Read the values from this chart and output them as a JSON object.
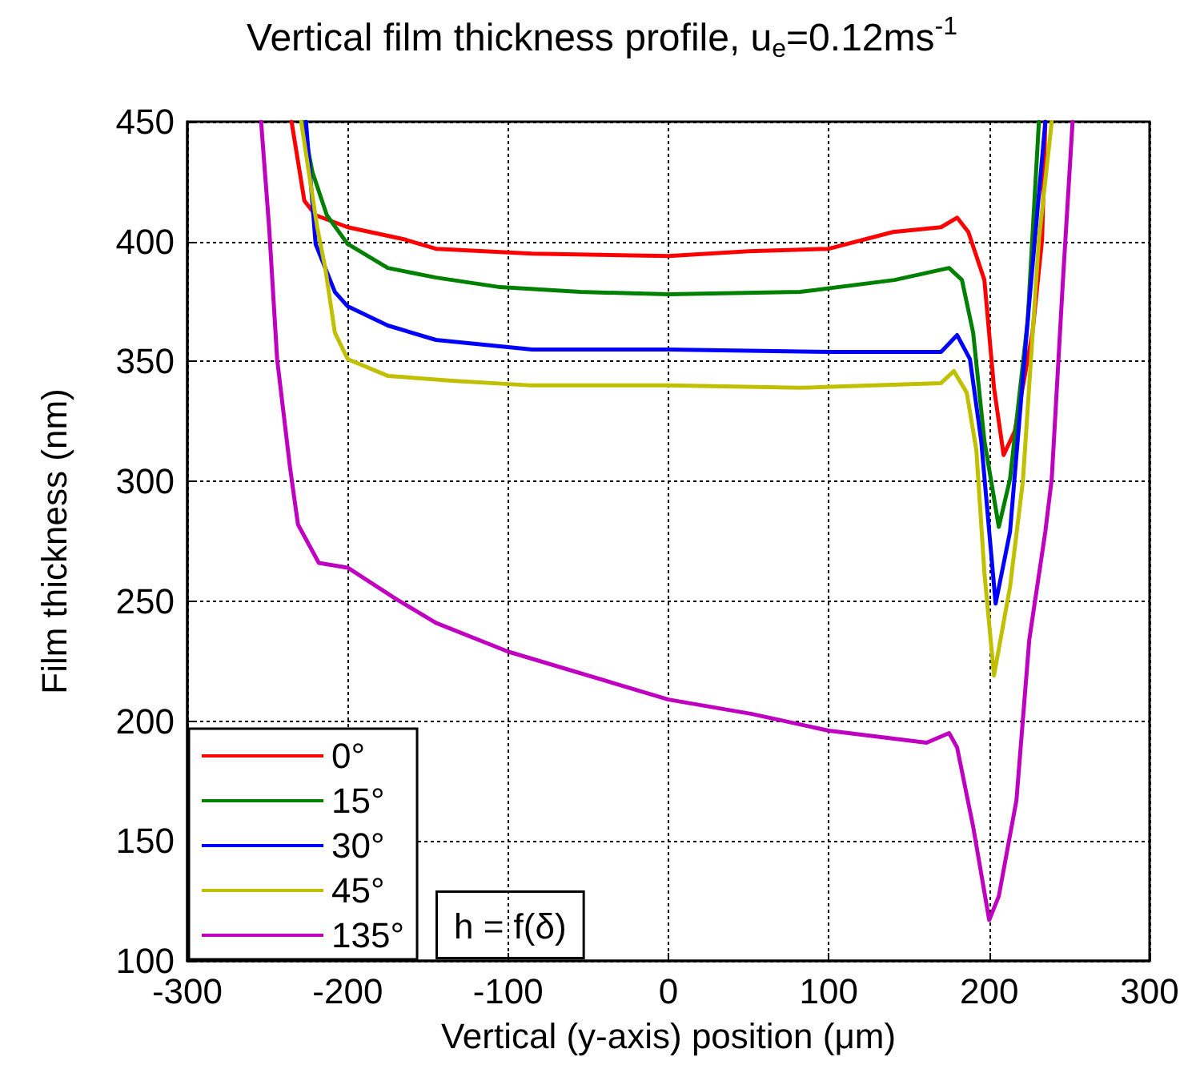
{
  "chart_data": {
    "type": "line",
    "title": "Vertical film thickness profile, u$_{e}$=0.12ms$^{-1}$",
    "xlabel": "Vertical (y-axis) position (μm)",
    "ylabel": "Film thickness (nm)",
    "xlim": [
      -300,
      300
    ],
    "xticks": [
      -300,
      -200,
      -100,
      0,
      100,
      200,
      300
    ],
    "ylim": [
      100,
      450
    ],
    "yticks": [
      100,
      150,
      200,
      250,
      300,
      350,
      400,
      450
    ],
    "grid": true,
    "legend": "bottom left",
    "line_style": "solid",
    "marker": "none",
    "annotations": [
      "h = f(δ)"
    ],
    "series": [
      {
        "name": "0°",
        "color": "#ff0000",
        "x": [
          -235,
          -227,
          -220,
          -200,
          -165,
          -145,
          -85,
          0,
          50,
          100,
          140,
          170,
          180,
          187,
          197,
          203,
          209,
          216,
          227,
          233,
          235
        ],
        "values": [
          450,
          417,
          411,
          406,
          401,
          397,
          395,
          394,
          396,
          397,
          404,
          406,
          410,
          404,
          384,
          339,
          311,
          321,
          362,
          401,
          450
        ]
      },
      {
        "name": "15°",
        "color": "#008000",
        "x": [
          -228,
          -222,
          -213,
          -200,
          -175,
          -145,
          -105,
          -55,
          0,
          82,
          141,
          175,
          183,
          190,
          197,
          206,
          213,
          224,
          231
        ],
        "values": [
          450,
          429,
          411,
          399,
          389,
          385,
          381,
          379,
          378,
          379,
          384,
          389,
          384,
          362,
          317,
          281,
          301,
          367,
          450
        ]
      },
      {
        "name": "30°",
        "color": "#0000ff",
        "x": [
          -226,
          -220,
          -208,
          -200,
          -175,
          -145,
          -115,
          -85,
          0,
          101,
          170,
          180,
          188,
          195,
          204,
          213,
          224,
          235
        ],
        "values": [
          450,
          399,
          379,
          373,
          365,
          359,
          357,
          355,
          355,
          354,
          354,
          361,
          351,
          317,
          249,
          279,
          367,
          450
        ]
      },
      {
        "name": "45°",
        "color": "#c0c000",
        "x": [
          -229,
          -219,
          -214,
          -208,
          -200,
          -175,
          -135,
          -85,
          0,
          82,
          170,
          178,
          186,
          192,
          197,
          203,
          213,
          221,
          231,
          239
        ],
        "values": [
          450,
          406,
          389,
          362,
          351,
          344,
          342,
          340,
          340,
          339,
          341,
          346,
          337,
          313,
          262,
          219,
          256,
          300,
          401,
          450
        ]
      },
      {
        "name": "135°",
        "color": "#c000c0",
        "x": [
          -254,
          -249,
          -244,
          -236,
          -231,
          -218,
          -200,
          -170,
          -145,
          -100,
          0,
          52,
          100,
          161,
          175,
          180,
          190,
          200,
          206,
          217,
          225,
          235,
          239,
          246,
          252
        ],
        "values": [
          450,
          406,
          351,
          306,
          282,
          266,
          264,
          251,
          241,
          229,
          209,
          203,
          196,
          191,
          195,
          189,
          156,
          117,
          127,
          167,
          234,
          279,
          301,
          384,
          450
        ]
      }
    ]
  }
}
